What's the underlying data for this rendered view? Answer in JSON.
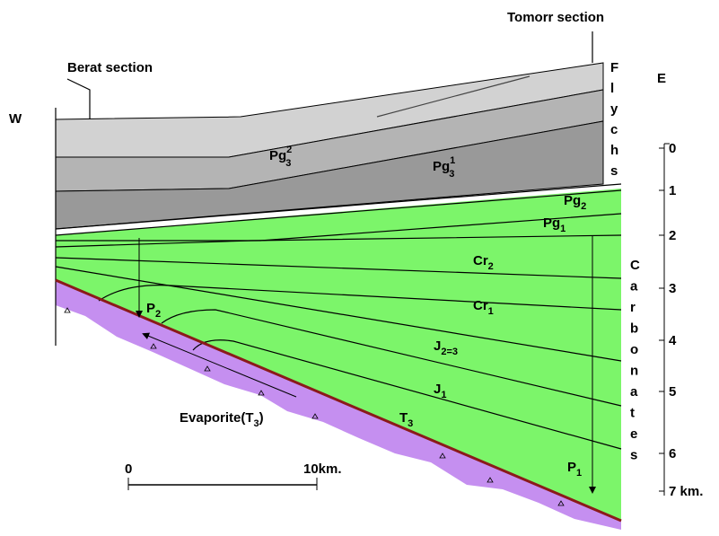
{
  "header": {
    "left_section": "Berat section",
    "right_section": "Tomorr section",
    "west": "W",
    "east": "E"
  },
  "formations": [
    {
      "base": "Pg",
      "sub": "3",
      "sup": "2"
    },
    {
      "base": "Pg",
      "sub": "3",
      "sup": "1"
    },
    {
      "base": "Pg",
      "sub": "2"
    },
    {
      "base": "Pg",
      "sub": "1"
    },
    {
      "base": "Cr",
      "sub": "2"
    },
    {
      "base": "Cr",
      "sub": "1"
    },
    {
      "base": "J",
      "sub": "2=3"
    },
    {
      "base": "J",
      "sub": "1"
    },
    {
      "base": "T",
      "sub": "3"
    },
    {
      "base": "P",
      "sub": "2"
    },
    {
      "base": "P",
      "sub": "1"
    }
  ],
  "evaporite": {
    "text": "Evaporite(T",
    "sub": "3",
    "close": ")"
  },
  "flysch_letters": [
    "F",
    "l",
    "y",
    "c",
    "h",
    "s"
  ],
  "carbonate_letters": [
    "C",
    "a",
    "r",
    "b",
    "o",
    "n",
    "a",
    "t",
    "e",
    "s"
  ],
  "depth_scale": [
    "0",
    "1",
    "2",
    "3",
    "4",
    "5",
    "6",
    "7 km."
  ],
  "scale_bar": [
    "0",
    "10km."
  ]
}
